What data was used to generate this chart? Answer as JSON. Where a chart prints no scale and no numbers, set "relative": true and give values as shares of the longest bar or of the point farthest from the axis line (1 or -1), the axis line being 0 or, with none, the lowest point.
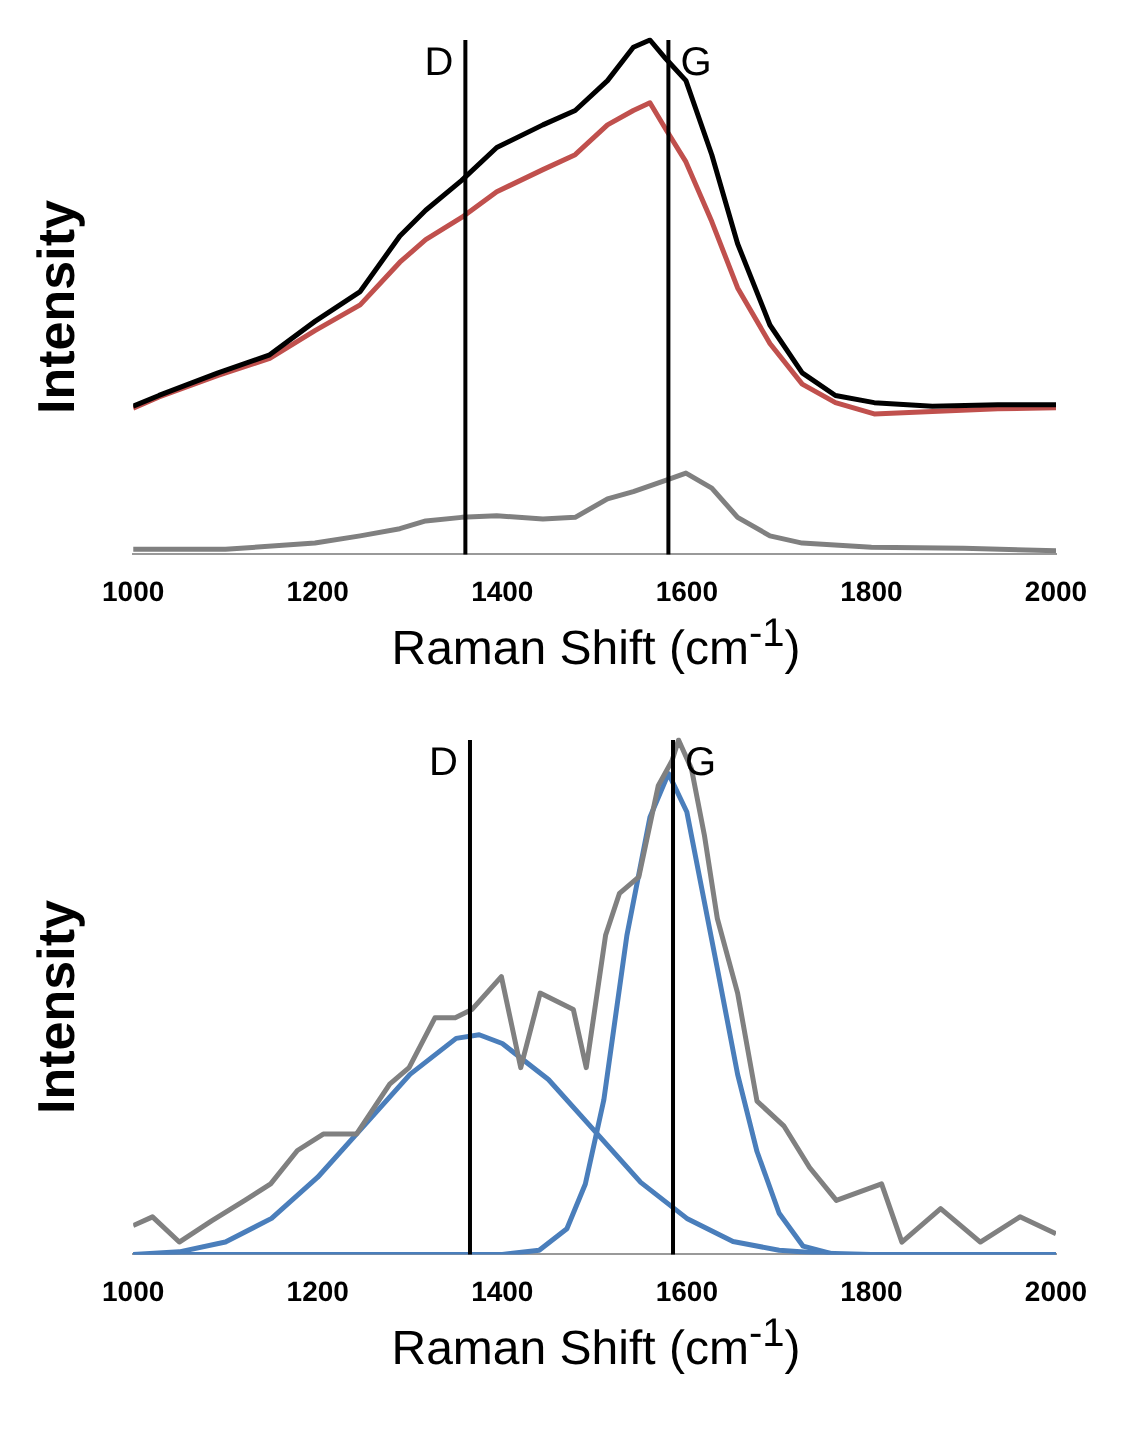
{
  "chart_data": [
    {
      "type": "line",
      "xlabel": "Raman Shift (cm$^{-1}$)",
      "ylabel": "Intensity",
      "relative": true,
      "xlim": [
        1000,
        2000
      ],
      "xticks": [
        1000,
        1200,
        1400,
        1600,
        1800,
        2000
      ],
      "grid": false,
      "legend": false,
      "marker": "none",
      "line_style": "solid",
      "series": [
        {
          "color": "#000000",
          "x": [
            1000,
            1028,
            1092,
            1148,
            1197,
            1246,
            1289,
            1317,
            1356,
            1394,
            1444,
            1479,
            1514,
            1542,
            1560,
            1577,
            1599,
            1627,
            1655,
            1690,
            1725,
            1761,
            1803,
            1866,
            1937,
            2000
          ],
          "values": [
            0.288,
            0.309,
            0.353,
            0.388,
            0.453,
            0.511,
            0.619,
            0.669,
            0.727,
            0.791,
            0.835,
            0.863,
            0.921,
            0.986,
            1.0,
            0.964,
            0.921,
            0.777,
            0.604,
            0.446,
            0.353,
            0.309,
            0.295,
            0.288,
            0.291,
            0.291
          ]
        },
        {
          "color": "#c0504d",
          "x": [
            1000,
            1028,
            1092,
            1148,
            1197,
            1246,
            1289,
            1317,
            1356,
            1394,
            1444,
            1479,
            1514,
            1542,
            1560,
            1577,
            1599,
            1627,
            1655,
            1690,
            1725,
            1761,
            1803,
            1866,
            1937,
            2000
          ],
          "values": [
            0.284,
            0.306,
            0.348,
            0.381,
            0.435,
            0.485,
            0.568,
            0.612,
            0.655,
            0.705,
            0.748,
            0.777,
            0.835,
            0.863,
            0.878,
            0.827,
            0.763,
            0.647,
            0.518,
            0.41,
            0.331,
            0.295,
            0.273,
            0.278,
            0.283,
            0.285
          ]
        },
        {
          "color": "#808080",
          "x": [
            1000,
            1100,
            1197,
            1246,
            1289,
            1317,
            1356,
            1394,
            1444,
            1479,
            1514,
            1542,
            1577,
            1599,
            1627,
            1655,
            1690,
            1725,
            1800,
            1900,
            2000
          ],
          "values": [
            0.01,
            0.01,
            0.022,
            0.036,
            0.05,
            0.065,
            0.072,
            0.075,
            0.069,
            0.072,
            0.108,
            0.122,
            0.144,
            0.158,
            0.129,
            0.072,
            0.036,
            0.022,
            0.014,
            0.012,
            0.007
          ]
        }
      ],
      "ref_lines": [
        {
          "axis": "x",
          "value": 1360,
          "label": "D",
          "color": "#000000"
        },
        {
          "axis": "x",
          "value": 1580,
          "label": "G",
          "color": "#000000"
        }
      ]
    },
    {
      "type": "line",
      "xlabel": "Raman Shift (cm$^{-1}$)",
      "ylabel": "Intensity",
      "relative": true,
      "xlim": [
        1000,
        2000
      ],
      "xticks": [
        1000,
        1200,
        1400,
        1600,
        1800,
        2000
      ],
      "grid": false,
      "legend": false,
      "marker": "none",
      "line_style": "solid",
      "series": [
        {
          "color": "#808080",
          "x": [
            1000,
            1021,
            1050,
            1085,
            1121,
            1149,
            1178,
            1206,
            1242,
            1278,
            1299,
            1327,
            1349,
            1367,
            1399,
            1420,
            1441,
            1477,
            1491,
            1512,
            1527,
            1548,
            1569,
            1584,
            1591,
            1605,
            1619,
            1633,
            1655,
            1676,
            1705,
            1733,
            1762,
            1811,
            1833,
            1875,
            1918,
            1961,
            2000
          ],
          "values": [
            0.056,
            0.073,
            0.024,
            0.065,
            0.105,
            0.137,
            0.202,
            0.234,
            0.234,
            0.331,
            0.363,
            0.46,
            0.46,
            0.476,
            0.54,
            0.363,
            0.508,
            0.476,
            0.363,
            0.621,
            0.702,
            0.734,
            0.911,
            0.96,
            1.0,
            0.944,
            0.815,
            0.653,
            0.508,
            0.298,
            0.25,
            0.169,
            0.105,
            0.137,
            0.024,
            0.089,
            0.024,
            0.073,
            0.04
          ]
        },
        {
          "color": "#4a7ebb",
          "x": [
            1000,
            1050,
            1100,
            1150,
            1200,
            1250,
            1300,
            1350,
            1375,
            1400,
            1450,
            1500,
            1550,
            1600,
            1650,
            1700,
            1750,
            1800,
            2000
          ],
          "values": [
            0,
            0.005,
            0.024,
            0.07,
            0.15,
            0.25,
            0.35,
            0.42,
            0.427,
            0.41,
            0.34,
            0.24,
            0.14,
            0.07,
            0.025,
            0.008,
            0.002,
            0,
            0
          ]
        },
        {
          "color": "#4a7ebb",
          "x": [
            1000,
            1400,
            1440,
            1470,
            1490,
            1510,
            1535,
            1560,
            1580,
            1600,
            1633,
            1655,
            1676,
            1700,
            1726,
            1760,
            2000
          ],
          "values": [
            0,
            0,
            0.008,
            0.05,
            0.137,
            0.3,
            0.62,
            0.85,
            0.935,
            0.86,
            0.556,
            0.35,
            0.2,
            0.08,
            0.016,
            0,
            0
          ]
        }
      ],
      "ref_lines": [
        {
          "axis": "x",
          "value": 1365,
          "label": "D",
          "color": "#000000"
        },
        {
          "axis": "x",
          "value": 1585,
          "label": "G",
          "color": "#000000"
        }
      ]
    }
  ]
}
